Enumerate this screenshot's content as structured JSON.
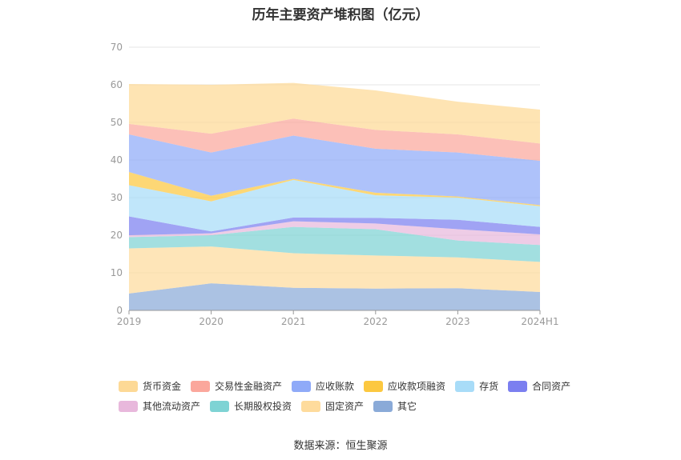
{
  "chart_data": {
    "type": "area",
    "stacked": true,
    "title": "历年主要资产堆积图（亿元）",
    "categories": [
      "2019",
      "2020",
      "2021",
      "2022",
      "2023",
      "2024H1"
    ],
    "ylim": [
      0,
      70
    ],
    "yticks": [
      0,
      10,
      20,
      30,
      40,
      50,
      60,
      70
    ],
    "grid": true,
    "legend_position": "bottom",
    "series": [
      {
        "name": "其它",
        "color": "#8aaad8",
        "values": [
          4.5,
          7.2,
          6.0,
          5.8,
          5.9,
          4.9
        ]
      },
      {
        "name": "固定资产",
        "color": "#fedb9c",
        "values": [
          12.0,
          9.8,
          9.2,
          8.8,
          8.2,
          8.0
        ]
      },
      {
        "name": "长期股权投资",
        "color": "#7ed3d4",
        "values": [
          3.0,
          3.0,
          7.0,
          7.0,
          4.5,
          4.5
        ]
      },
      {
        "name": "其他流动资产",
        "color": "#e8b8dc",
        "values": [
          0.5,
          0.5,
          1.5,
          1.5,
          3.0,
          2.8
        ]
      },
      {
        "name": "合同资产",
        "color": "#7b7ff0",
        "values": [
          5.0,
          0.5,
          1.0,
          1.5,
          2.5,
          2.0
        ]
      },
      {
        "name": "存货",
        "color": "#a8dcf8",
        "values": [
          8.3,
          8.0,
          10.0,
          6.0,
          5.9,
          5.5
        ]
      },
      {
        "name": "应收款项融资",
        "color": "#fcc840",
        "values": [
          3.5,
          1.5,
          0.3,
          0.7,
          0.3,
          0.3
        ]
      },
      {
        "name": "应收账款",
        "color": "#8faaf8",
        "values": [
          10.0,
          11.5,
          11.5,
          11.7,
          11.7,
          11.8
        ]
      },
      {
        "name": "交易性金融资产",
        "color": "#fba79c",
        "values": [
          2.8,
          5.0,
          4.5,
          5.0,
          4.8,
          4.6
        ]
      },
      {
        "name": "货币资金",
        "color": "#fdd996",
        "values": [
          10.6,
          13.0,
          9.5,
          10.5,
          8.7,
          9.0
        ]
      }
    ]
  },
  "legend": {
    "row1": [
      "货币资金",
      "交易性金融资产",
      "应收账款",
      "应收款项融资",
      "存货",
      "合同资产"
    ],
    "row2": [
      "其他流动资产",
      "长期股权投资",
      "固定资产",
      "其它"
    ]
  },
  "source": "数据来源：恒生聚源"
}
